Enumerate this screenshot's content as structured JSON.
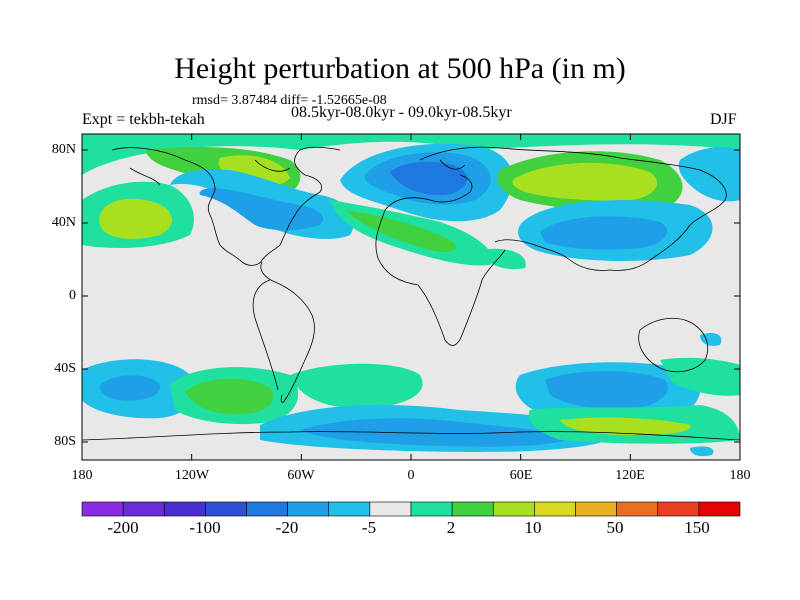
{
  "title": "Height perturbation at 500 hPa (in m)",
  "stats": "rmsd= 3.87484 diff= -1.52665e-08",
  "experiment": "Expt = tekbh-tekah",
  "period": "08.5kyr-08.0kyr - 09.0kyr-08.5kyr",
  "season": "DJF",
  "lat_labels": [
    "80N",
    "40N",
    "0",
    "40S",
    "80S"
  ],
  "lon_labels": [
    "180",
    "120W",
    "60W",
    "0",
    "60E",
    "120E",
    "180"
  ],
  "colorbar": {
    "colors": [
      "#8b2be2",
      "#6a2bd8",
      "#4a2fd0",
      "#2f4fd8",
      "#1f78e0",
      "#1f9fe8",
      "#20c0e8",
      "#e8e8e8",
      "#20e0a0",
      "#40d040",
      "#a8e020",
      "#d8d820",
      "#e8b020",
      "#e87020",
      "#e84020",
      "#e80000"
    ],
    "labels": [
      "-200",
      "-100",
      "-20",
      "-5",
      "2",
      "10",
      "50",
      "150"
    ]
  },
  "map_colors": {
    "ocean": "#e8e8e8",
    "coast": "#000000"
  }
}
